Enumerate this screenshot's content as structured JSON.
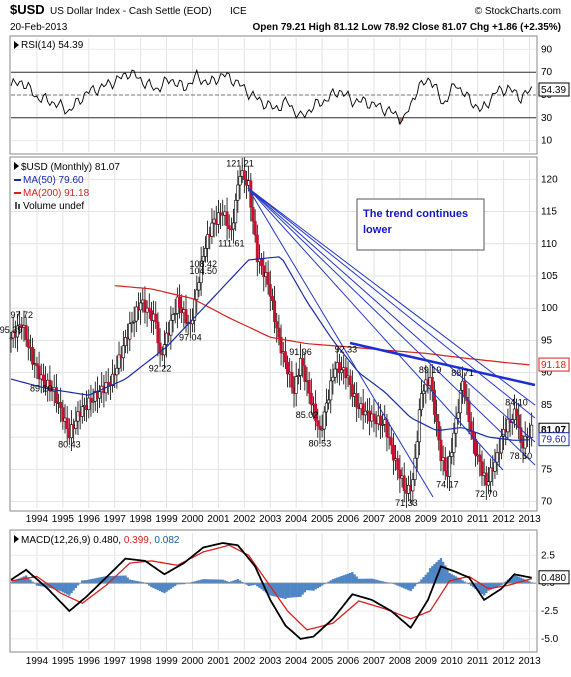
{
  "header": {
    "symbol": "$USD",
    "name": "US Dollar Index - Cash Settle (EOD)",
    "exchange": "ICE",
    "brand": "© StockCharts.com",
    "date": "20-Feb-2013",
    "quote": "Open 79.21  High 81.12  Low 78.92  Close 81.07  Chg +1.86 (+2.35%)"
  },
  "rsi_panel": {
    "label": "RSI(14) 54.39",
    "current_badge": "54.39",
    "ticks": [
      90,
      70,
      50,
      30,
      10
    ],
    "overbought": 70,
    "oversold": 30,
    "ylim": [
      0,
      100
    ]
  },
  "price_panel": {
    "legend": [
      "$USD (Monthly) 81.07",
      "MA(50) 79.60",
      "MA(200) 91.18",
      "Volume undef"
    ],
    "legend_colors": [
      "#000000",
      "#1a2aa6",
      "#d9201e",
      "#555555"
    ],
    "ticks": [
      120,
      115,
      110,
      105,
      100,
      95,
      90,
      85,
      80,
      75,
      70
    ],
    "ylim": [
      69,
      123
    ],
    "badges": {
      "ma200": "91.18",
      "close": "81.07",
      "ma50": "79.60"
    },
    "annotation": "The trend continues lower"
  },
  "macd_panel": {
    "label": "MACD(12,26,9) 0.480, 0.399, 0.082",
    "current_badge": "0.480",
    "ticks": [
      "2.5",
      "0.0",
      "-2.5",
      "-5.0"
    ],
    "tick_values": [
      2.5,
      0,
      -2.5,
      -5
    ],
    "ylim": [
      -6,
      4.5
    ]
  },
  "x_axis_years": [
    "1994",
    "1995",
    "1996",
    "1997",
    "1998",
    "1999",
    "2000",
    "2001",
    "2002",
    "2003",
    "2004",
    "2005",
    "2006",
    "2007",
    "2008",
    "2009",
    "2010",
    "2011",
    "2012",
    "2013"
  ],
  "chart_data": {
    "type": "line",
    "title": "$USD US Dollar Index - Cash Settle (EOD) ICE",
    "x_range": [
      "1993-01",
      "2013-02"
    ],
    "ylim": [
      69,
      123
    ],
    "series": [
      {
        "name": "$USD (Monthly) 81.07",
        "x": [
          "1993-01",
          "1993-06",
          "1993-11",
          "1994-03",
          "1994-09",
          "1995-04",
          "1995-09",
          "1996-06",
          "1996-12",
          "1997-08",
          "1998-01",
          "1998-08",
          "1998-10",
          "1999-06",
          "1999-12",
          "2000-06",
          "2000-10",
          "2001-03",
          "2001-07",
          "2001-11",
          "2002-03",
          "2002-07",
          "2002-12",
          "2003-05",
          "2003-12",
          "2004-03",
          "2004-12",
          "2005-07",
          "2005-12",
          "2006-05",
          "2006-12",
          "2007-06",
          "2007-11",
          "2008-04",
          "2008-07",
          "2008-11",
          "2009-03",
          "2009-08",
          "2009-11",
          "2010-06",
          "2010-11",
          "2011-05",
          "2011-10",
          "2012-01",
          "2012-07",
          "2012-09",
          "2013-02"
        ],
        "values": [
          95.39,
          97.72,
          92,
          89.1,
          87,
          80.43,
          84,
          87,
          89,
          97,
          101,
          98,
          92.22,
          101,
          97.04,
          108.42,
          113,
          115,
          111.61,
          121.21,
          119,
          108,
          104,
          95,
          87,
          91.96,
          80.53,
          91,
          90,
          85,
          83,
          82,
          76,
          71.33,
          73,
          87,
          89.2,
          77,
          74.17,
          88.71,
          79,
          72.7,
          77,
          81,
          84.1,
          78.6,
          81.07
        ]
      },
      {
        "name": "MA(50) 79.60",
        "x": [
          "1993-01",
          "1994-06",
          "1996-01",
          "1997-06",
          "1999-01",
          "2000-06",
          "2002-03",
          "2003-06",
          "2004-06",
          "2005-06",
          "2006-06",
          "2007-06",
          "2008-06",
          "2009-06",
          "2010-06",
          "2011-06",
          "2012-06",
          "2013-02"
        ],
        "values": [
          89,
          87.5,
          86.5,
          89,
          94,
          100,
          107.5,
          108,
          101,
          95,
          90,
          87,
          83,
          81,
          81.5,
          80,
          79.5,
          79.6
        ]
      },
      {
        "name": "MA(200) 91.18",
        "x": [
          "1997-01",
          "1998-06",
          "2000-01",
          "2001-06",
          "2003-01",
          "2004-06",
          "2006-01",
          "2007-06",
          "2009-01",
          "2010-06",
          "2012-01",
          "2013-02"
        ],
        "values": [
          103.5,
          103,
          101.5,
          98.5,
          95.5,
          94.5,
          94,
          93.5,
          93,
          92.3,
          91.6,
          91.18
        ]
      }
    ],
    "price_labels": [
      {
        "x": "1993-01",
        "value": 95.39,
        "text": "95.39"
      },
      {
        "x": "1993-06",
        "value": 97.72,
        "text": "97.72"
      },
      {
        "x": "1994-03",
        "value": 89.1,
        "text": "89.10"
      },
      {
        "x": "1995-04",
        "value": 80.43,
        "text": "80.43"
      },
      {
        "x": "1998-10",
        "value": 92.22,
        "text": "92.22"
      },
      {
        "x": "1999-12",
        "value": 97.04,
        "text": "97.04"
      },
      {
        "x": "2000-06",
        "value": 104.5,
        "text": "104.50"
      },
      {
        "x": "2000-06",
        "value": 108.42,
        "text": "108.42"
      },
      {
        "x": "2001-07",
        "value": 111.61,
        "text": "111.61"
      },
      {
        "x": "2001-11",
        "value": 121.21,
        "text": "121.21"
      },
      {
        "x": "2004-03",
        "value": 91.96,
        "text": "91.96"
      },
      {
        "x": "2004-06",
        "value": 85.02,
        "text": "85.02"
      },
      {
        "x": "2004-12",
        "value": 80.53,
        "text": "80.53"
      },
      {
        "x": "2005-12",
        "value": 92.33,
        "text": "92.33"
      },
      {
        "x": "2008-04",
        "value": 71.33,
        "text": "71.33"
      },
      {
        "x": "2009-03",
        "value": 89.2,
        "text": "89.19"
      },
      {
        "x": "2009-11",
        "value": 74.17,
        "text": "74.17"
      },
      {
        "x": "2010-06",
        "value": 88.71,
        "text": "88.71"
      },
      {
        "x": "2011-05",
        "value": 72.7,
        "text": "72.70"
      },
      {
        "x": "2012-07",
        "value": 84.1,
        "text": "84.10"
      },
      {
        "x": "2012-09",
        "value": 78.6,
        "text": "78.60"
      }
    ],
    "rsi": {
      "x": [
        "1993-01",
        "1993-06",
        "1994-01",
        "1994-08",
        "1995-04",
        "1995-12",
        "1996-06",
        "1997-03",
        "1997-08",
        "1998-02",
        "1998-08",
        "1999-03",
        "1999-09",
        "2000-03",
        "2000-09",
        "2001-03",
        "2001-09",
        "2002-03",
        "2002-09",
        "2003-03",
        "2003-09",
        "2004-03",
        "2004-09",
        "2005-03",
        "2005-09",
        "2006-03",
        "2006-09",
        "2007-03",
        "2007-09",
        "2008-03",
        "2008-09",
        "2009-03",
        "2009-09",
        "2010-03",
        "2010-09",
        "2011-03",
        "2011-09",
        "2012-03",
        "2012-09",
        "2013-02"
      ],
      "values": [
        58,
        62,
        48,
        44,
        36,
        52,
        56,
        64,
        70,
        62,
        55,
        64,
        56,
        66,
        60,
        68,
        62,
        52,
        44,
        38,
        44,
        30,
        40,
        46,
        54,
        45,
        44,
        40,
        35,
        28,
        55,
        65,
        42,
        60,
        46,
        36,
        52,
        56,
        48,
        54.39
      ]
    },
    "macd": {
      "x": [
        "1993-01",
        "1993-08",
        "1994-06",
        "1995-04",
        "1995-12",
        "1996-09",
        "1997-06",
        "1998-03",
        "1998-12",
        "1999-09",
        "2000-06",
        "2001-03",
        "2001-10",
        "2002-06",
        "2003-01",
        "2003-08",
        "2004-03",
        "2004-09",
        "2005-06",
        "2006-03",
        "2006-12",
        "2007-09",
        "2008-06",
        "2009-02",
        "2009-08",
        "2010-03",
        "2010-09",
        "2011-04",
        "2011-12",
        "2012-06",
        "2013-02"
      ],
      "values": [
        0.3,
        1.2,
        -0.5,
        -2.5,
        -1.2,
        0.5,
        2.2,
        2.0,
        0.8,
        1.8,
        3.2,
        3.6,
        3.4,
        1.5,
        -1.5,
        -3.8,
        -5.0,
        -4.8,
        -3.2,
        -1.0,
        -1.5,
        -2.5,
        -4.0,
        -1.5,
        1.5,
        1.0,
        0.5,
        -1.5,
        -0.5,
        0.8,
        0.48
      ]
    },
    "macd_signal": {
      "x": [
        "1993-01",
        "1994-01",
        "1994-12",
        "1995-10",
        "1996-09",
        "1997-08",
        "1998-06",
        "1999-06",
        "2000-06",
        "2001-06",
        "2002-03",
        "2002-12",
        "2003-09",
        "2004-06",
        "2005-06",
        "2006-06",
        "2007-06",
        "2008-06",
        "2009-03",
        "2009-12",
        "2010-09",
        "2011-06",
        "2012-03",
        "2013-02"
      ],
      "values": [
        0.2,
        0.6,
        -0.9,
        -1.8,
        -0.2,
        1.8,
        2.0,
        1.6,
        2.8,
        3.4,
        2.5,
        0.0,
        -2.5,
        -4.2,
        -3.6,
        -1.6,
        -2.3,
        -3.2,
        -2.5,
        0.2,
        0.6,
        -0.5,
        -0.2,
        0.399
      ]
    }
  }
}
